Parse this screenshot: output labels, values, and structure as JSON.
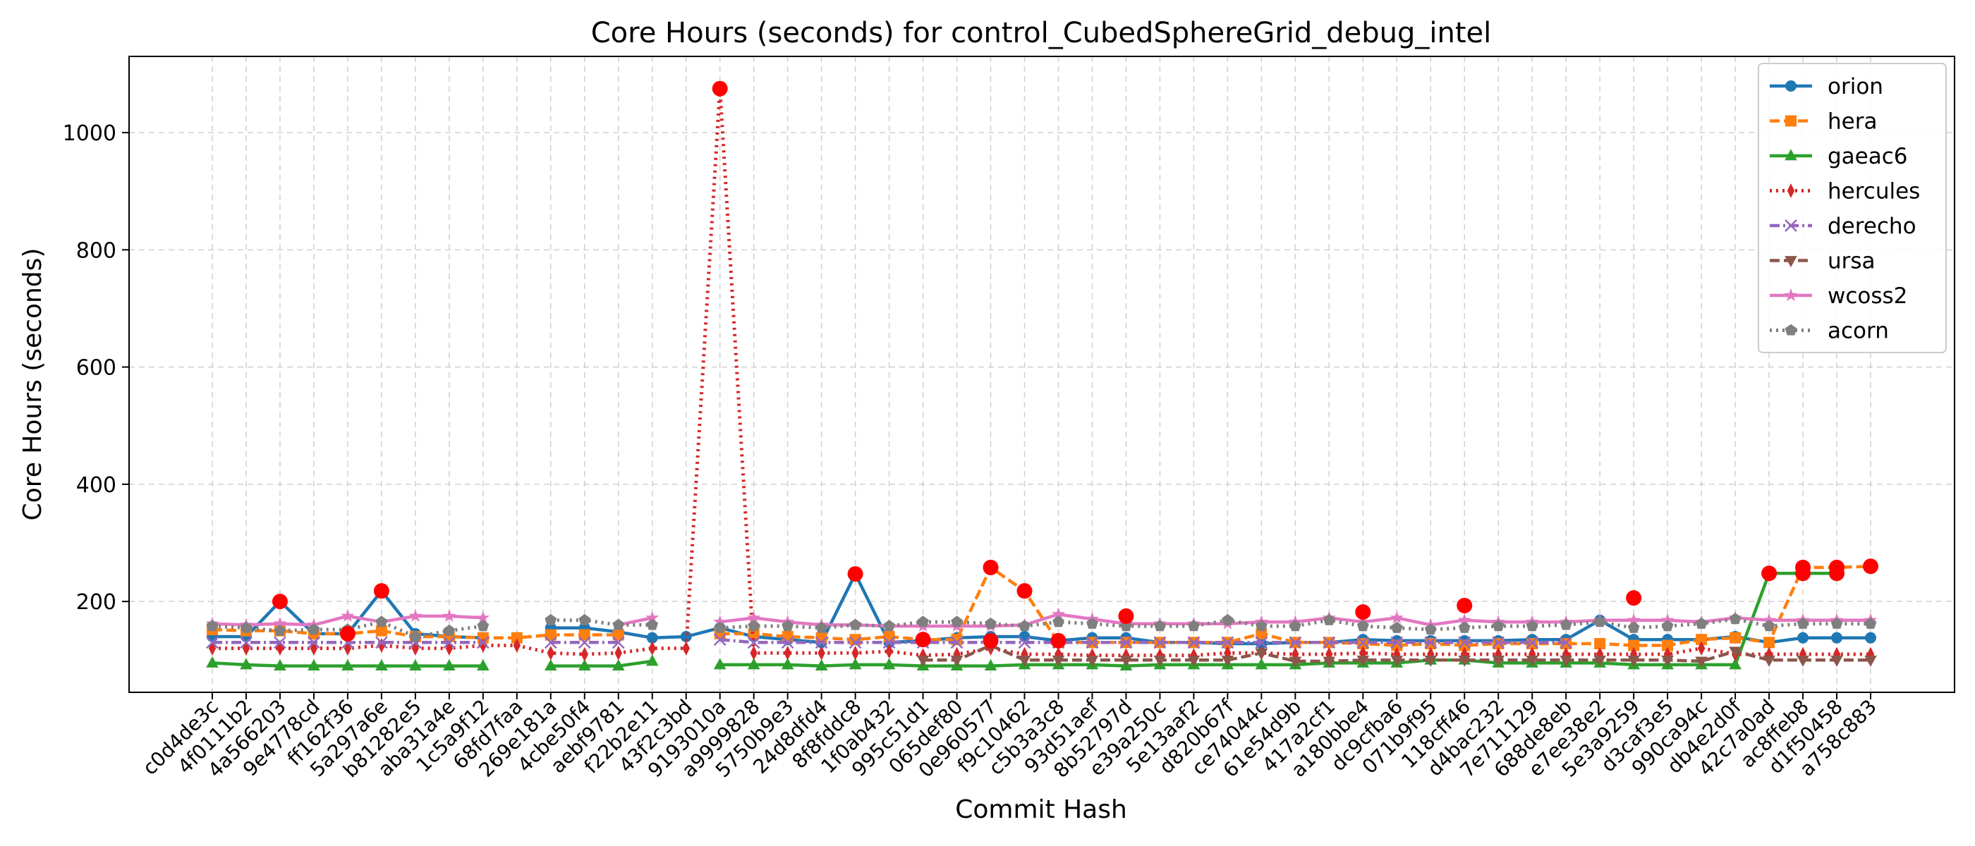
{
  "chart_data": {
    "type": "line",
    "title": "Core Hours (seconds) for control_CubedSphereGrid_debug_intel",
    "xlabel": "Commit Hash",
    "ylabel": "Core Hours (seconds)",
    "ylim": [
      45,
      1130
    ],
    "yticks": [
      200,
      400,
      600,
      800,
      1000
    ],
    "grid": true,
    "legend_position": "top-right",
    "categories": [
      "c0d4de3c",
      "4f0111b2",
      "4a566203",
      "9e4778cd",
      "ff162f36",
      "5a297a6e",
      "b81282e5",
      "aba31a4e",
      "1c5a9f12",
      "68fd7faa",
      "269e181a",
      "4cbe50f4",
      "aebf9781",
      "f22b2e11",
      "43f2c3bd",
      "9193010a",
      "a9999828",
      "5750b9e3",
      "24d8dfd4",
      "8f8fddc8",
      "1f0ab432",
      "995c51d1",
      "065def80",
      "0e960577",
      "f9c10462",
      "c5b3a3c8",
      "93d51aef",
      "8b52797d",
      "e39a250c",
      "5e13aaf2",
      "d820b67f",
      "ce74044c",
      "61e54d9b",
      "417a2cf1",
      "a180bbe4",
      "dc9cfba6",
      "071b9f95",
      "118cff46",
      "d4bac232",
      "7e711129",
      "688de8eb",
      "e7ee38e2",
      "5e3a9259",
      "d3caf3e5",
      "990ca94c",
      "db4e2d0f",
      "42c7a0ad",
      "ac8ffeb8",
      "d1f50458",
      "a758c883"
    ],
    "series": [
      {
        "name": "orion",
        "color": "#1f77b4",
        "marker": "circle",
        "dash": "solid",
        "values": [
          140,
          140,
          200,
          145,
          145,
          218,
          145,
          140,
          138,
          null,
          155,
          155,
          148,
          138,
          140,
          155,
          140,
          135,
          130,
          247,
          130,
          133,
          138,
          140,
          140,
          133,
          138,
          138,
          130,
          130,
          128,
          128,
          130,
          130,
          135,
          133,
          133,
          133,
          133,
          135,
          135,
          168,
          135,
          135,
          135,
          140,
          130,
          138,
          138,
          138
        ]
      },
      {
        "name": "hera",
        "color": "#ff7f0e",
        "marker": "square",
        "dash": "dashed",
        "values": [
          152,
          150,
          150,
          145,
          145,
          150,
          140,
          140,
          138,
          138,
          143,
          143,
          143,
          null,
          null,
          145,
          145,
          140,
          138,
          135,
          140,
          135,
          135,
          258,
          218,
          130,
          130,
          130,
          130,
          130,
          130,
          145,
          130,
          130,
          128,
          125,
          128,
          125,
          128,
          128,
          128,
          128,
          125,
          125,
          135,
          138,
          130,
          258,
          258,
          260
        ]
      },
      {
        "name": "gaeac6",
        "color": "#2ca02c",
        "marker": "triangle-up",
        "dash": "solid",
        "values": [
          95,
          92,
          90,
          90,
          90,
          90,
          90,
          90,
          90,
          null,
          90,
          90,
          90,
          98,
          null,
          92,
          92,
          92,
          90,
          92,
          92,
          90,
          90,
          90,
          92,
          92,
          92,
          90,
          92,
          92,
          92,
          92,
          92,
          95,
          95,
          95,
          100,
          100,
          95,
          95,
          95,
          95,
          92,
          92,
          92,
          92,
          248,
          248,
          248,
          null
        ]
      },
      {
        "name": "hercules",
        "color": "#d62728",
        "marker": "thin-diamond",
        "dash": "dotted",
        "values": [
          120,
          120,
          120,
          120,
          120,
          125,
          120,
          120,
          125,
          125,
          112,
          110,
          112,
          120,
          120,
          1075,
          112,
          112,
          112,
          112,
          115,
          108,
          110,
          120,
          110,
          110,
          108,
          108,
          108,
          108,
          112,
          112,
          110,
          110,
          112,
          110,
          110,
          110,
          110,
          110,
          110,
          110,
          110,
          110,
          120,
          110,
          110,
          110,
          110,
          110
        ]
      },
      {
        "name": "derecho",
        "color": "#9467bd",
        "marker": "x",
        "dash": "dashdot",
        "values": [
          130,
          130,
          130,
          130,
          130,
          130,
          130,
          130,
          130,
          null,
          130,
          130,
          130,
          null,
          null,
          135,
          130,
          130,
          130,
          130,
          130,
          130,
          130,
          130,
          130,
          130,
          130,
          130,
          130,
          130,
          130,
          130,
          130,
          130,
          130,
          130,
          130,
          130,
          130,
          130,
          130,
          null,
          null,
          null,
          null,
          null,
          null,
          null,
          null,
          null
        ]
      },
      {
        "name": "ursa",
        "color": "#8c564b",
        "marker": "triangle-down",
        "dash": "dashed",
        "values": [
          null,
          null,
          null,
          null,
          null,
          null,
          null,
          null,
          null,
          null,
          null,
          null,
          null,
          null,
          null,
          null,
          null,
          null,
          null,
          null,
          null,
          100,
          100,
          125,
          100,
          100,
          100,
          100,
          100,
          100,
          100,
          112,
          98,
          98,
          100,
          100,
          100,
          100,
          100,
          100,
          100,
          100,
          100,
          100,
          98,
          115,
          100,
          100,
          100,
          100
        ]
      },
      {
        "name": "wcoss2",
        "color": "#e377c2",
        "marker": "star",
        "dash": "solid",
        "values": [
          162,
          160,
          162,
          160,
          175,
          165,
          175,
          175,
          172,
          null,
          null,
          null,
          160,
          172,
          null,
          165,
          172,
          165,
          160,
          160,
          158,
          158,
          158,
          158,
          160,
          178,
          170,
          162,
          162,
          162,
          162,
          165,
          165,
          172,
          165,
          172,
          160,
          168,
          165,
          165,
          165,
          168,
          168,
          168,
          165,
          172,
          168,
          168,
          168,
          168
        ]
      },
      {
        "name": "acorn",
        "color": "#7f7f7f",
        "marker": "pentagon",
        "dash": "dotted",
        "values": [
          158,
          155,
          150,
          152,
          152,
          165,
          140,
          150,
          158,
          null,
          168,
          168,
          160,
          160,
          null,
          155,
          158,
          158,
          155,
          160,
          158,
          165,
          165,
          162,
          158,
          165,
          162,
          158,
          158,
          158,
          168,
          158,
          158,
          168,
          158,
          155,
          152,
          155,
          158,
          158,
          160,
          165,
          155,
          158,
          162,
          170,
          158,
          162,
          162,
          162
        ]
      }
    ],
    "highlight_points": [
      {
        "category": "4a566203",
        "value": 200
      },
      {
        "category": "ff162f36",
        "value": 145
      },
      {
        "category": "5a297a6e",
        "value": 218
      },
      {
        "category": "9193010a",
        "value": 1075
      },
      {
        "category": "8f8fddc8",
        "value": 247
      },
      {
        "category": "995c51d1",
        "value": 135
      },
      {
        "category": "0e960577",
        "value": 258
      },
      {
        "category": "0e960577",
        "value": 133
      },
      {
        "category": "f9c10462",
        "value": 218
      },
      {
        "category": "c5b3a3c8",
        "value": 133
      },
      {
        "category": "8b52797d",
        "value": 175
      },
      {
        "category": "a180bbe4",
        "value": 182
      },
      {
        "category": "118cff46",
        "value": 193
      },
      {
        "category": "5e3a9259",
        "value": 206
      },
      {
        "category": "42c7a0ad",
        "value": 248
      },
      {
        "category": "ac8ffeb8",
        "value": 258
      },
      {
        "category": "ac8ffeb8",
        "value": 248
      },
      {
        "category": "d1f50458",
        "value": 258
      },
      {
        "category": "d1f50458",
        "value": 248
      },
      {
        "category": "a758c883",
        "value": 260
      }
    ],
    "highlight_color": "#ff0000"
  }
}
